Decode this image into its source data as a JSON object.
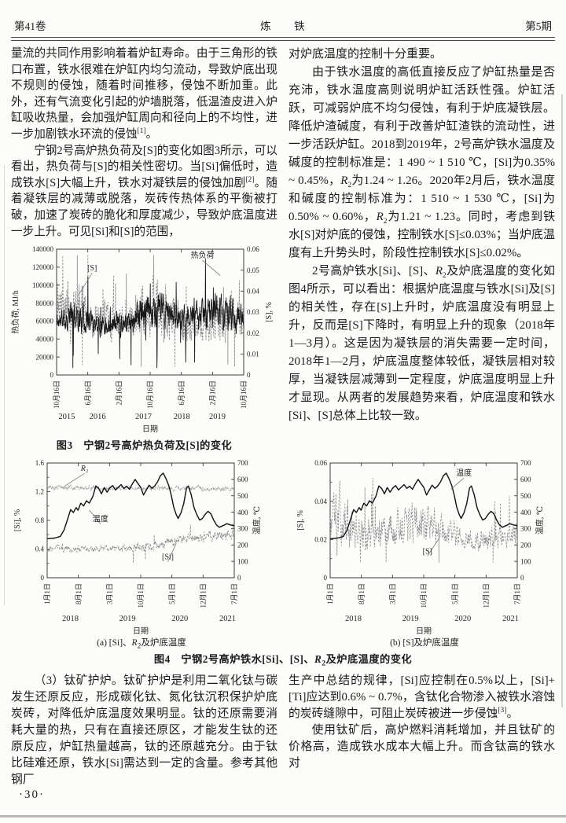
{
  "header": {
    "volume": "第41卷",
    "journal": "炼　铁",
    "issue": "第5期"
  },
  "footer": {
    "page_number": "·30·"
  },
  "text": {
    "left_top_1": [
      "量流的共同作用影响着着炉缸寿命。由于三角形的铁口布置，铁水很难在炉缸内均匀流动，导致炉底出现不规则的侵蚀，随着时间推移，侵蚀不断加重。此外，还有气流变化引起的炉墙脱落，低温渣皮进入炉缸吸收热量，会加强炉缸周向和径向上的不均性，进一步加剧铁水环流的侵蚀",
      {
        "t": "[1]",
        "s": "sup"
      },
      "。"
    ],
    "left_top_2": [
      "宁钢2号高炉热负荷及[S]的变化如图3所示，可以看出，热负荷与[S]的相关性密切。当[Si]偏低时，造成铁水[S]大幅上升，铁水对凝铁层的侵蚀加剧",
      {
        "t": "[2]",
        "s": "sup"
      },
      "。随着凝铁层的减薄或脱落，炭砖传热体系的平衡被打破，加速了炭砖的脆化和厚度减少，导致炉底温度进一步上升。可见[Si]和[S]的范围，"
    ],
    "right_top_0": [
      "对炉底温度的控制十分重要。"
    ],
    "right_top_1": [
      "由于铁水温度的高低直接反应了炉缸热量是否充沛，铁水温度高则说明炉缸活跃性强。炉缸活跃，可减弱炉底不均匀侵蚀，有利于炉底凝铁层。降低炉渣碱度，有利于改善炉缸渣铁的流动性，进一步活跃炉缸。2018到2019年，2号高炉铁水温度及碱度的控制标准是：1 490 ~ 1 510 ℃，[Si]为0.35% ~ 0.45%，",
      {
        "t": "R",
        "s": "i"
      },
      {
        "t": "2",
        "s": "sub"
      },
      "为1.24 ~ 1.26。2020年2月后，铁水温度和碱度的控制标准为：1 510 ~ 1 530 ℃，[Si]为0.50% ~ 0.60%，",
      {
        "t": "R",
        "s": "i"
      },
      {
        "t": "2",
        "s": "sub"
      },
      "为1.21 ~ 1.23。同时，考虑到铁水[S]对炉底的侵蚀，控制铁水[S]≤0.03%；当炉底温度有上升势头时，阶段性控制铁水[S]≤0.02%。"
    ],
    "right_top_2": [
      "2号高炉铁水[Si]、[S]、",
      {
        "t": "R",
        "s": "i"
      },
      {
        "t": "2",
        "s": "sub"
      },
      "及炉底温度的变化如图4所示，可以看出：根据炉底温度与铁水[Si]及[S]的相关性，存在[S]上升时，炉底温度没有明显上升，反而是[S]下降时，有明显上升的现象（2018年1—3月）。这是因为凝铁层的消失需要一定时间，2018年1—2月，炉底温度整体较低，凝铁层相对较厚，当凝铁层减薄到一定程度，炉底温度明显上升才显现。从两者的发展趋势来看，炉底温度和铁水[Si]、[S]总体上比较一致。"
    ],
    "bottom_left_1": [
      "（3）钛矿护炉。钛矿护炉是利用二氧化钛与碳发生还原反应，形成碳化钛、氮化钛沉积保护炉底炭砖，对降低炉底温度效果明显。钛的还原需要消耗大量的热，只有在直接还原区，才能发生钛的还原反应，炉缸热量越高，钛的还原越充分。由于钛比硅难还原，铁水[Si]需达到一定的含量。参考其他钢厂"
    ],
    "bottom_right_1": [
      "生产中总结的规律，[Si]应控制在0.5%以上，[Si]+[Ti]应达到0.6% ~ 0.7%，含钛化合物渗入被铁水溶蚀的炭砖缝隙中，可阻止炭砖被进一步侵蚀",
      {
        "t": "[3]",
        "s": "sup"
      },
      "。"
    ],
    "bottom_right_2": [
      "使用钛矿后，高炉燃料消耗增加，并且钛矿的价格高，造成铁水成本大幅上升。而含钛高的铁水对"
    ]
  },
  "captions": {
    "fig3": "图3　宁钢2号高炉热负荷及[S]的变化",
    "fig4": [
      "图4　宁钢2号高炉铁水[Si]、[S]、",
      {
        "t": "R",
        "s": "i"
      },
      {
        "t": "2",
        "s": "sub"
      },
      "及炉底温度的变化"
    ],
    "fig4a": [
      "(a) [Si]、",
      {
        "t": "R",
        "s": "i"
      },
      {
        "t": "2",
        "s": "sub"
      },
      "及炉底温度"
    ],
    "fig4b": [
      "(b) [S]及炉底温度"
    ]
  },
  "shared": {
    "temperature_c": [
      [
        0,
        238
      ],
      [
        0.04,
        242
      ],
      [
        0.07,
        252
      ],
      [
        0.09,
        290
      ],
      [
        0.11,
        360
      ],
      [
        0.125,
        415
      ],
      [
        0.14,
        398
      ],
      [
        0.155,
        428
      ],
      [
        0.165,
        412
      ],
      [
        0.18,
        455
      ],
      [
        0.195,
        438
      ],
      [
        0.21,
        470
      ],
      [
        0.225,
        455
      ],
      [
        0.245,
        498
      ],
      [
        0.26,
        560
      ],
      [
        0.275,
        545
      ],
      [
        0.29,
        512
      ],
      [
        0.305,
        550
      ],
      [
        0.32,
        522
      ],
      [
        0.335,
        548
      ],
      [
        0.35,
        562
      ],
      [
        0.365,
        535
      ],
      [
        0.38,
        552
      ],
      [
        0.395,
        568
      ],
      [
        0.41,
        545
      ],
      [
        0.425,
        558
      ],
      [
        0.44,
        540
      ],
      [
        0.455,
        572
      ],
      [
        0.47,
        600
      ],
      [
        0.485,
        575
      ],
      [
        0.5,
        552
      ],
      [
        0.515,
        505
      ],
      [
        0.53,
        535
      ],
      [
        0.545,
        565
      ],
      [
        0.56,
        545
      ],
      [
        0.575,
        560
      ],
      [
        0.59,
        585
      ],
      [
        0.605,
        622
      ],
      [
        0.62,
        638
      ],
      [
        0.635,
        605
      ],
      [
        0.65,
        562
      ],
      [
        0.663,
        505
      ],
      [
        0.676,
        432
      ],
      [
        0.69,
        385
      ],
      [
        0.7,
        362
      ],
      [
        0.715,
        395
      ],
      [
        0.73,
        452
      ],
      [
        0.745,
        548
      ],
      [
        0.755,
        560
      ],
      [
        0.77,
        505
      ],
      [
        0.785,
        428
      ],
      [
        0.8,
        385
      ],
      [
        0.815,
        352
      ],
      [
        0.83,
        362
      ],
      [
        0.845,
        388
      ],
      [
        0.86,
        405
      ],
      [
        0.875,
        390
      ],
      [
        0.89,
        352
      ],
      [
        0.905,
        322
      ],
      [
        0.92,
        308
      ],
      [
        0.94,
        318
      ],
      [
        0.96,
        330
      ],
      [
        0.98,
        322
      ],
      [
        1,
        318
      ]
    ]
  },
  "chart_data": [
    {
      "id": "fig3",
      "type": "line",
      "title": "宁钢2号高炉热负荷及[S]的变化",
      "xlabel": "日期",
      "x_ticks": [
        "10月16日",
        "6月16日",
        "2月16日",
        "10月16日",
        "6月16日",
        "2月16日",
        "10月16日"
      ],
      "x_years": [
        {
          "t": "2015",
          "x": 0.01
        },
        {
          "t": "2016",
          "x": 0.175
        },
        {
          "t": "2017",
          "x": 0.42
        },
        {
          "t": "2018",
          "x": 0.625
        },
        {
          "t": "2019",
          "x": 0.815
        }
      ],
      "left_axis": {
        "label": "热负荷, MJ/h",
        "min": 0,
        "max": 140000,
        "step": 20000,
        "dec": 0
      },
      "right_axis": {
        "label": "[S], %",
        "min": 0,
        "max": 0.06,
        "step": 0.01,
        "dec": 2
      },
      "series": [
        {
          "name": "[S]",
          "axis": "right",
          "line": "dashed",
          "color": "#8e8e8e",
          "width": 0.9,
          "gen": "noisy",
          "seed": 23,
          "n": 760,
          "envelope": [
            [
              0,
              0.028,
              0.007
            ],
            [
              0.05,
              0.033,
              0.012
            ],
            [
              0.12,
              0.031,
              0.011
            ],
            [
              0.2,
              0.027,
              0.008
            ],
            [
              0.3,
              0.025,
              0.007
            ],
            [
              0.4,
              0.028,
              0.009
            ],
            [
              0.5,
              0.03,
              0.011
            ],
            [
              0.58,
              0.031,
              0.012
            ],
            [
              0.66,
              0.025,
              0.008
            ],
            [
              0.74,
              0.022,
              0.006
            ],
            [
              0.82,
              0.026,
              0.008
            ],
            [
              0.9,
              0.028,
              0.009
            ],
            [
              1,
              0.026,
              0.006
            ]
          ],
          "spike": {
            "p": 0.02,
            "upbias": 0.8,
            "mag": 2.5
          },
          "clamp": [
            0.004,
            0.057
          ]
        },
        {
          "name": "热负荷",
          "axis": "left",
          "line": "solid",
          "color": "#171717",
          "width": 0.9,
          "gen": "noisy",
          "seed": 11,
          "n": 760,
          "envelope": [
            [
              0,
              58000,
              10000
            ],
            [
              0.08,
              66000,
              15000
            ],
            [
              0.16,
              62000,
              13000
            ],
            [
              0.26,
              57000,
              10000
            ],
            [
              0.36,
              60000,
              12000
            ],
            [
              0.46,
              68000,
              16000
            ],
            [
              0.54,
              72000,
              17000
            ],
            [
              0.62,
              66000,
              14000
            ],
            [
              0.72,
              62000,
              12000
            ],
            [
              0.8,
              68000,
              16000
            ],
            [
              0.88,
              71000,
              17000
            ],
            [
              1,
              62000,
              13000
            ]
          ],
          "spike": {
            "p": 0.022,
            "upbias": 0.35,
            "mag": 3
          },
          "clamp": [
            8000,
            134000
          ]
        }
      ],
      "annotations": [
        {
          "text": "[S]",
          "color": "#555555",
          "tx": 0.19,
          "ty": 0.83,
          "lx": 0.115,
          "ly": 0.63
        },
        {
          "text": "热负荷",
          "color": "#222222",
          "tx": 0.78,
          "ty": 0.93,
          "lx": 0.875,
          "ly": 0.79
        }
      ]
    },
    {
      "id": "fig4a",
      "type": "line",
      "title": "(a) [Si]、R2及炉底温度",
      "xlabel": "日期",
      "x_ticks": [
        "1月1日",
        "8月1日",
        "3月1日",
        "10月1日",
        "5月1日",
        "12月1日",
        "7月1日"
      ],
      "x_years": [
        {
          "t": "2018",
          "x": 0.08
        },
        {
          "t": "2019",
          "x": 0.385
        },
        {
          "t": "2020",
          "x": 0.665
        },
        {
          "t": "2021",
          "x": 0.92
        }
      ],
      "left_axis": {
        "label": "[Si], %",
        "min": 0,
        "max": 1.6,
        "step": 0.4,
        "dec": 1,
        "minor": 0.2
      },
      "right_axis": {
        "label": "温度, ℃",
        "min": 0,
        "max": 700,
        "step": 100,
        "dec": 0
      },
      "series": [
        {
          "name": "R2",
          "axis": "left",
          "line": "dashed",
          "color": "#9a9a9a",
          "width": 0.8,
          "gen": "noisy",
          "seed": 5,
          "n": 620,
          "envelope": [
            [
              0,
              1.26,
              0.035
            ],
            [
              0.5,
              1.25,
              0.03
            ],
            [
              1,
              1.24,
              0.035
            ]
          ],
          "clamp": [
            1.12,
            1.4
          ]
        },
        {
          "name": "[Si]",
          "axis": "left",
          "line": "dashed",
          "color": "#8a8a8a",
          "width": 0.8,
          "gen": "noisy",
          "seed": 9,
          "n": 620,
          "envelope": [
            [
              0,
              0.4,
              0.045
            ],
            [
              0.25,
              0.4,
              0.04
            ],
            [
              0.45,
              0.41,
              0.045
            ],
            [
              0.55,
              0.43,
              0.05
            ],
            [
              0.65,
              0.5,
              0.055
            ],
            [
              0.75,
              0.55,
              0.06
            ],
            [
              0.85,
              0.58,
              0.065
            ],
            [
              1,
              0.6,
              0.06
            ]
          ],
          "spike": {
            "p": 0.013,
            "upbias": 0.5,
            "mag": 4
          },
          "clamp": [
            0.2,
            1.0
          ]
        },
        {
          "name": "温度",
          "axis": "right",
          "line": "solid",
          "color": "#111111",
          "width": 1.4,
          "gen": "points",
          "points_ref": "temperature_c"
        }
      ],
      "annotations": [
        {
          "text": "R₂",
          "color": "#444444",
          "italic": true,
          "tx": 0.2,
          "ty": 0.93,
          "lx": 0.095,
          "ly": 0.8
        },
        {
          "text": "温度",
          "color": "#222222",
          "tx": 0.285,
          "ty": 0.49,
          "lx": 0.225,
          "ly": 0.59
        },
        {
          "text": "[Si]",
          "color": "#555555",
          "tx": 0.645,
          "ty": 0.16,
          "lx": 0.69,
          "ly": 0.3
        }
      ]
    },
    {
      "id": "fig4b",
      "type": "line",
      "title": "(b) [S]及炉底温度",
      "xlabel": "日期",
      "x_ticks": [
        "1月1日",
        "8月1日",
        "3月1日",
        "10月1日",
        "5月1日",
        "12月1日",
        "7月1日"
      ],
      "x_years": [
        {
          "t": "2018",
          "x": 0.08
        },
        {
          "t": "2019",
          "x": 0.385
        },
        {
          "t": "2020",
          "x": 0.665
        },
        {
          "t": "2021",
          "x": 0.92
        }
      ],
      "left_axis": {
        "label": "[S], %",
        "min": 0,
        "max": 0.06,
        "step": 0.02,
        "dec": 2,
        "minor": 0.01
      },
      "right_axis": {
        "label": "温度, ℃",
        "min": 0,
        "max": 700,
        "step": 100,
        "dec": 0
      },
      "series": [
        {
          "name": "[S]",
          "axis": "left",
          "line": "dashed",
          "color": "#8e8e8e",
          "width": 0.8,
          "gen": "noisy",
          "seed": 31,
          "n": 620,
          "envelope": [
            [
              0,
              0.027,
              0.007
            ],
            [
              0.04,
              0.032,
              0.015
            ],
            [
              0.1,
              0.03,
              0.012
            ],
            [
              0.18,
              0.023,
              0.007
            ],
            [
              0.3,
              0.025,
              0.008
            ],
            [
              0.4,
              0.027,
              0.009
            ],
            [
              0.5,
              0.028,
              0.009
            ],
            [
              0.6,
              0.024,
              0.007
            ],
            [
              0.7,
              0.021,
              0.005
            ],
            [
              0.8,
              0.019,
              0.005
            ],
            [
              0.9,
              0.02,
              0.005
            ],
            [
              1,
              0.022,
              0.006
            ]
          ],
          "spike": {
            "p": 0.02,
            "upbias": 0.75,
            "mag": 2.5
          },
          "clamp": [
            0.008,
            0.057
          ]
        },
        {
          "name": "温度",
          "axis": "right",
          "line": "solid",
          "color": "#111111",
          "width": 1.4,
          "gen": "points",
          "points_ref": "temperature_c"
        }
      ],
      "annotations": [
        {
          "text": "温度",
          "color": "#222222",
          "tx": 0.715,
          "ty": 0.89,
          "lx": 0.645,
          "ly": 0.77
        },
        {
          "text": "[S]",
          "color": "#555555",
          "tx": 0.52,
          "ty": 0.21,
          "lx": 0.585,
          "ly": 0.35
        }
      ]
    }
  ]
}
